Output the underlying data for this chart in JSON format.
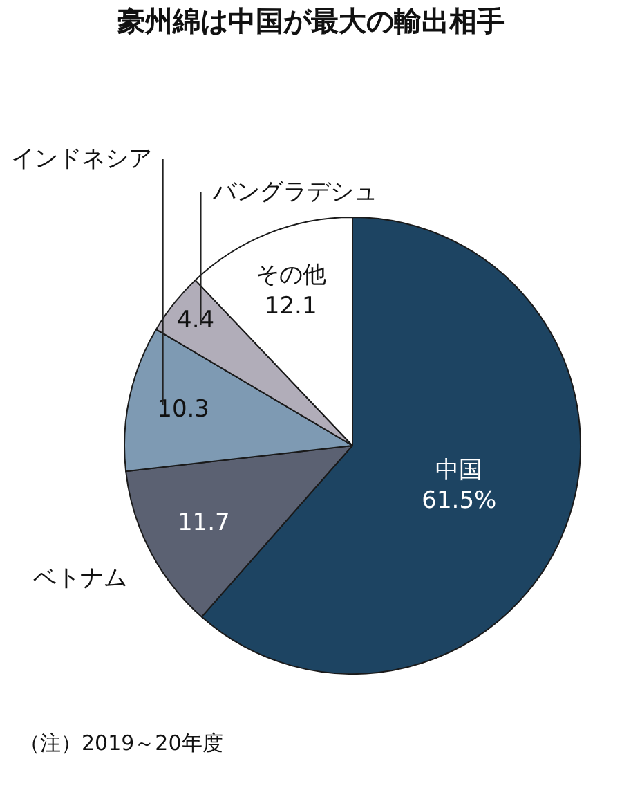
{
  "chart_data": {
    "type": "pie",
    "title": "豪州綿は中国が最大の輸出相手",
    "categories": [
      "中国",
      "ベトナム",
      "インドネシア",
      "バングラデシュ",
      "その他"
    ],
    "values": [
      61.5,
      11.7,
      10.3,
      4.4,
      12.1
    ],
    "colors": [
      "#1d4462",
      "#5b6172",
      "#7e9ab3",
      "#b1adb9",
      "#ffffff"
    ],
    "value_labels": [
      "61.5%",
      "11.7",
      "10.3",
      "4.4",
      "12.1"
    ],
    "annotations": [
      "（注）2019～20年度"
    ]
  }
}
